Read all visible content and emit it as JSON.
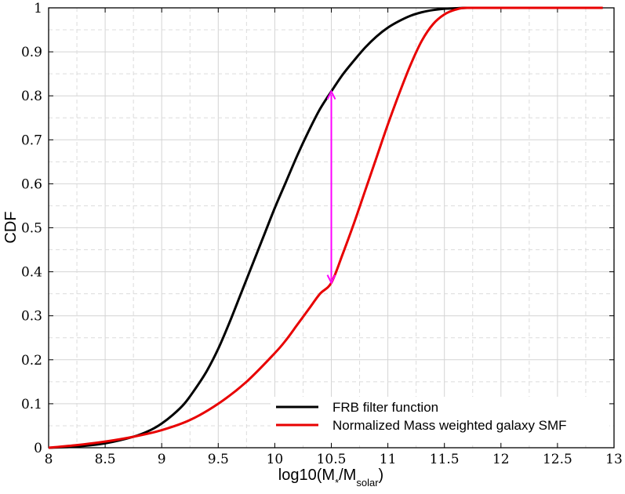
{
  "chart_data": {
    "type": "line",
    "xlabel": {
      "base": "log10(M",
      "sub1": "*",
      "mid": "/M",
      "sub2": "solar",
      "end": ")"
    },
    "ylabel": "CDF",
    "xlim": [
      8,
      13
    ],
    "ylim": [
      0,
      1
    ],
    "xticks": [
      8,
      8.5,
      9,
      9.5,
      10,
      10.5,
      11,
      11.5,
      12,
      12.5,
      13
    ],
    "xtick_labels": [
      "8",
      "8.5",
      "9",
      "9.5",
      "10",
      "10.5",
      "11",
      "11.5",
      "12",
      "12.5",
      "13"
    ],
    "yticks": [
      0,
      0.1,
      0.2,
      0.3,
      0.4,
      0.5,
      0.6,
      0.7,
      0.8,
      0.9,
      1
    ],
    "ytick_labels": [
      "0",
      "0.1",
      "0.2",
      "0.3",
      "0.4",
      "0.5",
      "0.6",
      "0.7",
      "0.8",
      "0.9",
      "1"
    ],
    "grid": true,
    "legend_position": "bottom-right",
    "series": [
      {
        "name": "FRB filter function",
        "color": "#000000",
        "x": [
          8.0,
          8.25,
          8.5,
          8.75,
          8.9,
          9.0,
          9.1,
          9.2,
          9.3,
          9.4,
          9.5,
          9.6,
          9.7,
          9.8,
          9.9,
          10.0,
          10.1,
          10.2,
          10.3,
          10.4,
          10.5,
          10.6,
          10.7,
          10.8,
          10.9,
          11.0,
          11.1,
          11.2,
          11.3,
          11.4,
          11.5,
          11.6,
          11.7,
          12.0,
          12.5,
          12.9
        ],
        "y": [
          0.0,
          0.003,
          0.01,
          0.025,
          0.04,
          0.055,
          0.075,
          0.1,
          0.135,
          0.175,
          0.225,
          0.285,
          0.35,
          0.415,
          0.48,
          0.545,
          0.605,
          0.665,
          0.72,
          0.77,
          0.81,
          0.848,
          0.88,
          0.91,
          0.935,
          0.955,
          0.97,
          0.982,
          0.99,
          0.995,
          0.998,
          0.999,
          1.0,
          1.0,
          1.0,
          1.0
        ]
      },
      {
        "name": "Normalized Mass weighted galaxy SMF",
        "color": "#e80000",
        "x": [
          8.0,
          8.25,
          8.5,
          8.75,
          9.0,
          9.25,
          9.5,
          9.75,
          10.0,
          10.1,
          10.2,
          10.3,
          10.4,
          10.5,
          10.6,
          10.7,
          10.8,
          10.9,
          11.0,
          11.1,
          11.2,
          11.3,
          11.4,
          11.5,
          11.6,
          11.7,
          12.0,
          12.5,
          12.9
        ],
        "y": [
          0.0,
          0.006,
          0.014,
          0.025,
          0.04,
          0.063,
          0.1,
          0.15,
          0.215,
          0.245,
          0.28,
          0.315,
          0.35,
          0.375,
          0.44,
          0.51,
          0.585,
          0.66,
          0.735,
          0.805,
          0.87,
          0.925,
          0.963,
          0.985,
          0.996,
          1.0,
          1.0,
          1.0,
          1.0
        ]
      }
    ],
    "annotations": [
      {
        "type": "double-arrow",
        "color": "#ff00ff",
        "x": 10.5,
        "y_start": 0.375,
        "y_end": 0.81
      }
    ]
  }
}
